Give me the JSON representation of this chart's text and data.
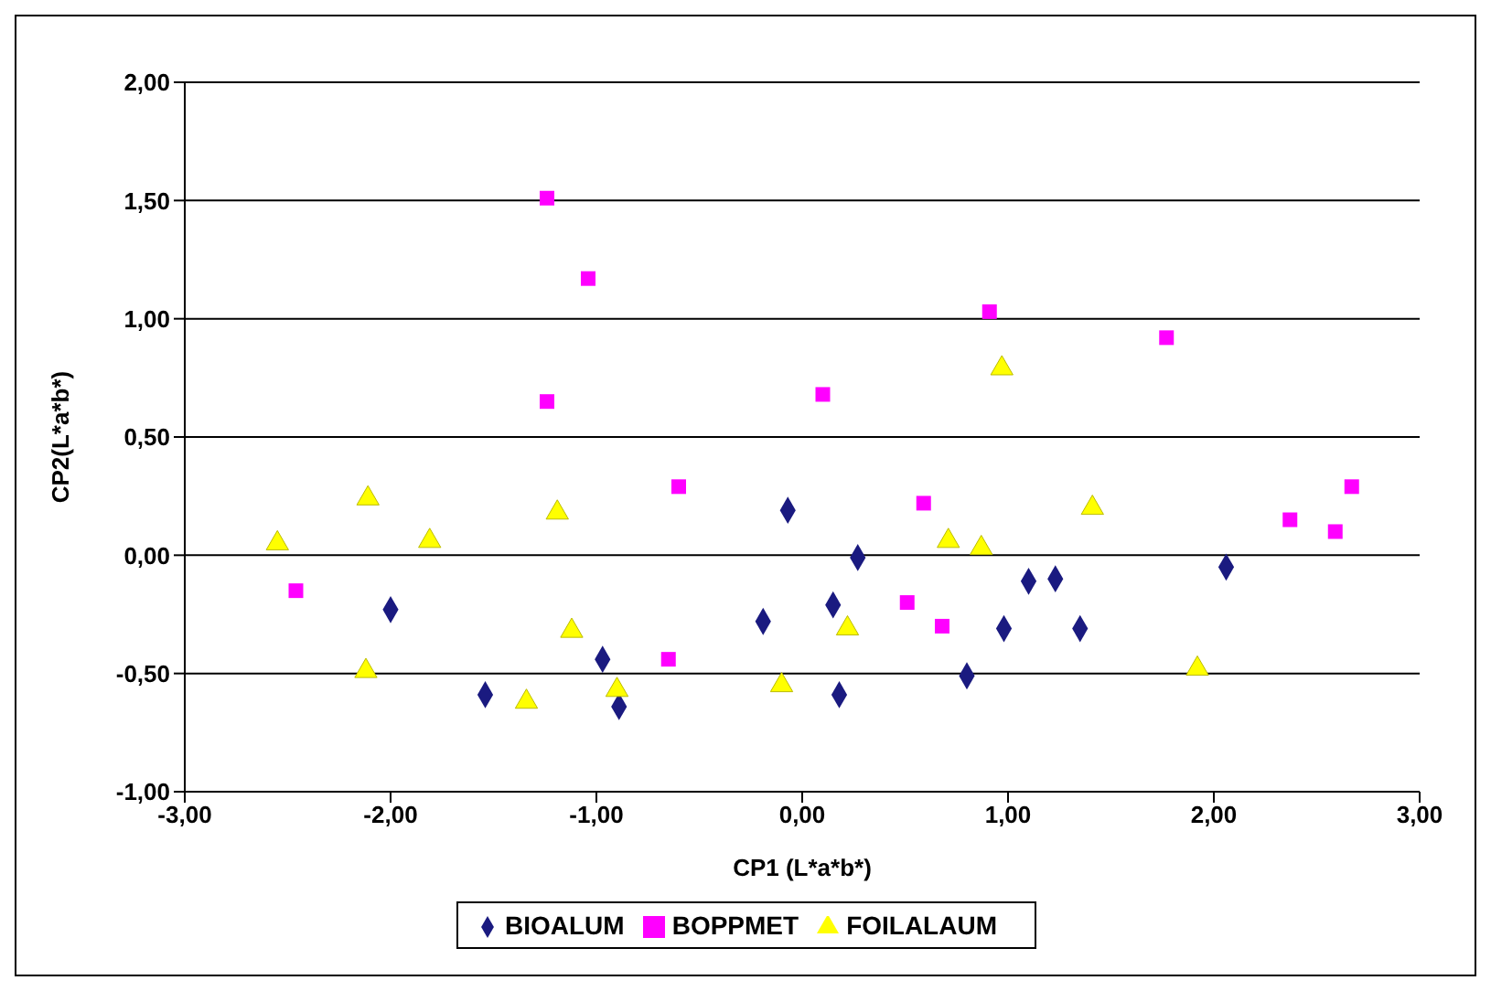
{
  "chart_data": {
    "type": "scatter",
    "xlabel": "CP1 (L*a*b*)",
    "ylabel": "CP2(L*a*b*)",
    "xlim": [
      -3,
      3
    ],
    "ylim": [
      -1,
      2
    ],
    "xticks": [
      {
        "value": -3,
        "label": "-3,00"
      },
      {
        "value": -2,
        "label": "-2,00"
      },
      {
        "value": -1,
        "label": "-1,00"
      },
      {
        "value": 0,
        "label": "0,00"
      },
      {
        "value": 1,
        "label": "1,00"
      },
      {
        "value": 2,
        "label": "2,00"
      },
      {
        "value": 3,
        "label": "3,00"
      }
    ],
    "yticks": [
      {
        "value": -1,
        "label": "-1,00"
      },
      {
        "value": -0.5,
        "label": "-0,50"
      },
      {
        "value": 0,
        "label": "0,00"
      },
      {
        "value": 0.5,
        "label": "0,50"
      },
      {
        "value": 1,
        "label": "1,00"
      },
      {
        "value": 1.5,
        "label": "1,50"
      },
      {
        "value": 2,
        "label": "2,00"
      }
    ],
    "grid": "y",
    "legend": "bottom",
    "series": [
      {
        "name": "BIOALUM",
        "color": "#1a1a80",
        "marker": "diamond",
        "x": [
          -2.0,
          -1.54,
          -0.97,
          -0.89,
          -0.19,
          -0.07,
          0.15,
          0.27,
          0.18,
          0.8,
          1.1,
          1.23,
          0.98,
          1.35,
          2.06
        ],
        "values": [
          -0.23,
          -0.59,
          -0.44,
          -0.64,
          -0.28,
          0.19,
          -0.21,
          -0.01,
          -0.59,
          -0.51,
          -0.11,
          -0.1,
          -0.31,
          -0.31,
          -0.05
        ]
      },
      {
        "name": "BOPPMET",
        "color": "#ff00ff",
        "marker": "square",
        "x": [
          -2.46,
          -1.24,
          -1.04,
          -1.24,
          -0.6,
          -0.65,
          0.1,
          0.59,
          0.51,
          0.68,
          0.91,
          1.77,
          2.37,
          2.59,
          2.67
        ],
        "values": [
          -0.15,
          1.51,
          1.17,
          0.65,
          0.29,
          -0.44,
          0.68,
          0.22,
          -0.2,
          -0.3,
          1.03,
          0.92,
          0.15,
          0.1,
          0.29
        ]
      },
      {
        "name": "FOILALAUM",
        "color": "#ffff00",
        "marker": "triangle",
        "x": [
          -2.55,
          -2.11,
          -2.12,
          -1.81,
          -1.19,
          -1.12,
          -1.34,
          -0.9,
          -0.1,
          0.22,
          0.71,
          0.87,
          0.97,
          1.41,
          1.92
        ],
        "values": [
          0.05,
          0.24,
          -0.49,
          0.06,
          0.18,
          -0.32,
          -0.62,
          -0.57,
          -0.55,
          -0.31,
          0.06,
          0.03,
          0.79,
          0.2,
          -0.48
        ]
      }
    ]
  }
}
